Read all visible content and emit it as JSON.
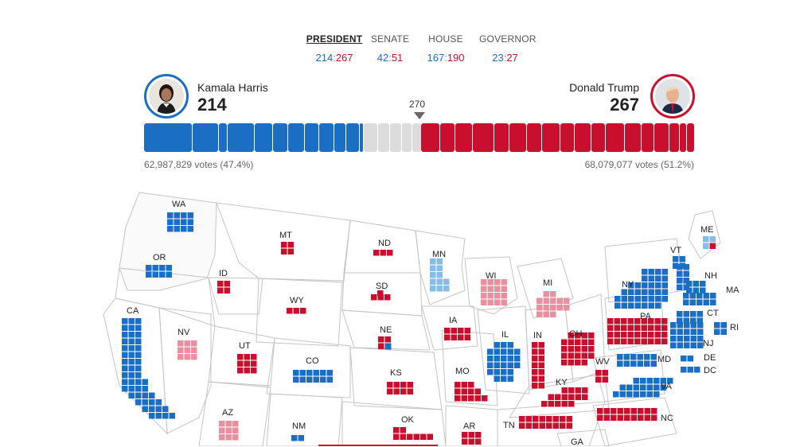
{
  "tabs": [
    {
      "label": "PRESIDENT",
      "dem": "214",
      "rep": "267"
    },
    {
      "label": "SENATE",
      "dem": "42",
      "rep": "51"
    },
    {
      "label": "HOUSE",
      "dem": "167",
      "rep": "190"
    },
    {
      "label": "GOVERNOR",
      "dem": "23",
      "rep": "27"
    }
  ],
  "candidates": {
    "dem": {
      "name": "Kamala Harris",
      "ev": "214",
      "votes": "62,987,829 votes (47.4%)",
      "color": "#1a6fc5"
    },
    "rep": {
      "name": "Donald Trump",
      "ev": "267",
      "votes": "68,079,077 votes (51.2%)",
      "color": "#c8102e"
    }
  },
  "threshold": "270",
  "colors": {
    "dem": "#1a6fc5",
    "dem_lean": "#86bde6",
    "rep": "#c8102e",
    "rep_lean": "#e8909f",
    "undecided": "#dcdcdc"
  },
  "states": [
    {
      "abbr": "WA"
    },
    {
      "abbr": "MT"
    },
    {
      "abbr": "ND"
    },
    {
      "abbr": "MN"
    },
    {
      "abbr": "ME"
    },
    {
      "abbr": "VT"
    },
    {
      "abbr": "OR"
    },
    {
      "abbr": "ID"
    },
    {
      "abbr": "SD"
    },
    {
      "abbr": "WI"
    },
    {
      "abbr": "MI"
    },
    {
      "abbr": "NY"
    },
    {
      "abbr": "NH"
    },
    {
      "abbr": "MA"
    },
    {
      "abbr": "WY"
    },
    {
      "abbr": "CA"
    },
    {
      "abbr": "NV"
    },
    {
      "abbr": "NE"
    },
    {
      "abbr": "IA"
    },
    {
      "abbr": "PA"
    },
    {
      "abbr": "CT"
    },
    {
      "abbr": "RI"
    },
    {
      "abbr": "UT"
    },
    {
      "abbr": "CO"
    },
    {
      "abbr": "IL"
    },
    {
      "abbr": "IN"
    },
    {
      "abbr": "OH"
    },
    {
      "abbr": "NJ"
    },
    {
      "abbr": "KS"
    },
    {
      "abbr": "MO"
    },
    {
      "abbr": "WV"
    },
    {
      "abbr": "MD"
    },
    {
      "abbr": "DE"
    },
    {
      "abbr": "DC"
    },
    {
      "abbr": "KY"
    },
    {
      "abbr": "VA"
    },
    {
      "abbr": "AZ"
    },
    {
      "abbr": "NM"
    },
    {
      "abbr": "OK"
    },
    {
      "abbr": "AR"
    },
    {
      "abbr": "TN"
    },
    {
      "abbr": "NC"
    },
    {
      "abbr": "GA"
    }
  ]
}
